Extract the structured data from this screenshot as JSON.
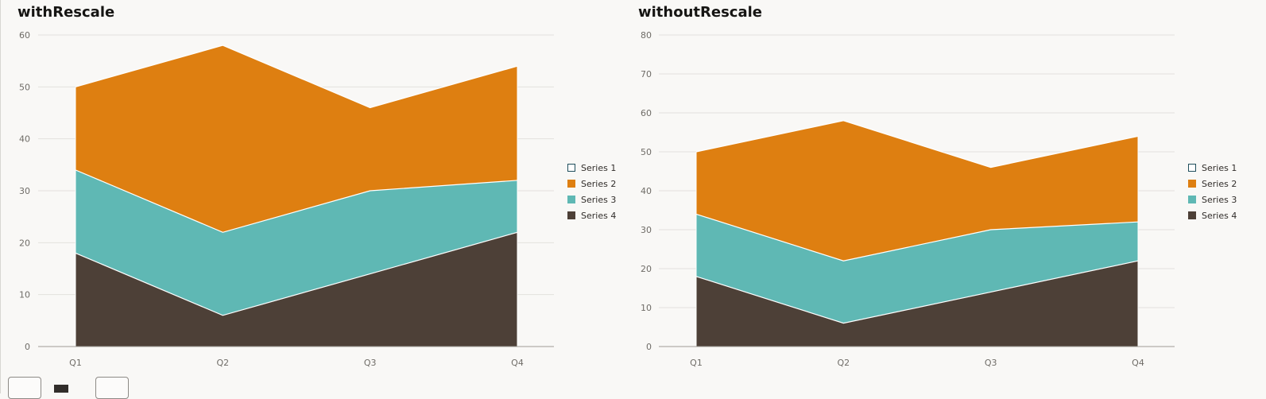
{
  "chart_data": [
    {
      "type": "area",
      "stacked": true,
      "title": "withRescale",
      "categories": [
        "Q1",
        "Q2",
        "Q3",
        "Q4"
      ],
      "series": [
        {
          "name": "Series 1",
          "values": [
            null,
            null,
            null,
            null
          ],
          "color": "#1f4e5b",
          "hollow": true
        },
        {
          "name": "Series 2",
          "values": [
            16,
            36,
            16,
            22
          ],
          "color": "#de7f11"
        },
        {
          "name": "Series 3",
          "values": [
            16,
            16,
            16,
            10
          ],
          "color": "#5fb8b4"
        },
        {
          "name": "Series 4",
          "values": [
            18,
            6,
            14,
            22
          ],
          "color": "#4d4037"
        }
      ],
      "ylim": [
        0,
        60
      ],
      "yticks": [
        "0",
        "10",
        "20",
        "30",
        "40",
        "50",
        "60"
      ],
      "grid": true,
      "legend": "right"
    },
    {
      "type": "area",
      "stacked": true,
      "title": "withoutRescale",
      "categories": [
        "Q1",
        "Q2",
        "Q3",
        "Q4"
      ],
      "series": [
        {
          "name": "Series 1",
          "values": [
            null,
            null,
            null,
            null
          ],
          "color": "#1f4e5b",
          "hollow": true
        },
        {
          "name": "Series 2",
          "values": [
            16,
            36,
            16,
            22
          ],
          "color": "#de7f11"
        },
        {
          "name": "Series 3",
          "values": [
            16,
            16,
            16,
            10
          ],
          "color": "#5fb8b4"
        },
        {
          "name": "Series 4",
          "values": [
            18,
            6,
            14,
            22
          ],
          "color": "#4d4037"
        }
      ],
      "ylim": [
        0,
        80
      ],
      "yticks": [
        "0",
        "10",
        "20",
        "30",
        "40",
        "50",
        "60",
        "70",
        "80"
      ],
      "grid": true,
      "legend": "right"
    }
  ]
}
